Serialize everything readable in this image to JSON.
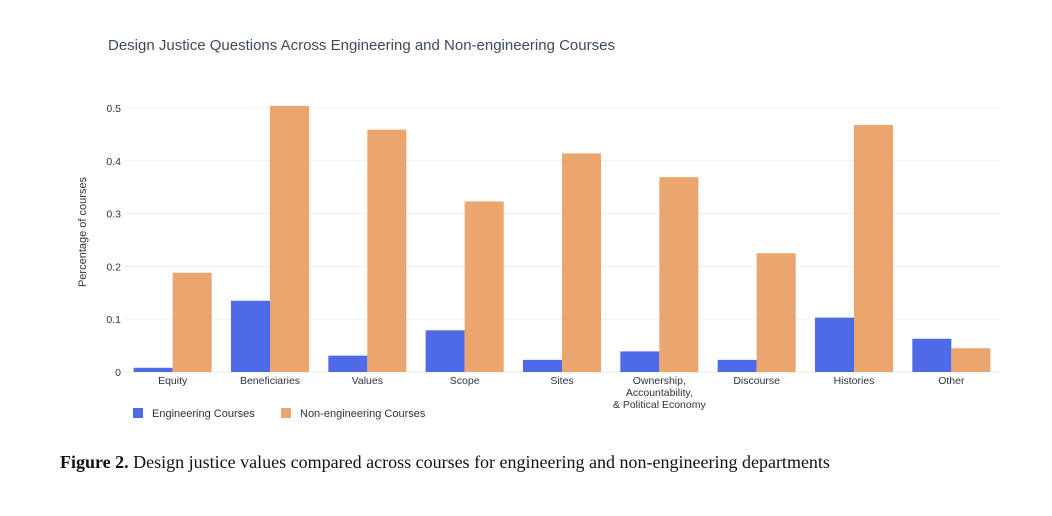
{
  "chart_data": {
    "type": "bar",
    "title": "Design Justice Questions Across Engineering and Non-engineering Courses",
    "xlabel": "",
    "ylabel": "Percentage of courses",
    "ylim": [
      0,
      0.5
    ],
    "yticks": [
      "0",
      "0.1",
      "0.2",
      "0.3",
      "0.4",
      "0.5"
    ],
    "categories": [
      [
        "Equity"
      ],
      [
        "Beneficiaries"
      ],
      [
        "Values"
      ],
      [
        "Scope"
      ],
      [
        "Sites"
      ],
      [
        "Ownership,",
        "Accountability,",
        "& Political Economy"
      ],
      [
        "Discourse"
      ],
      [
        "Histories"
      ],
      [
        "Other"
      ]
    ],
    "series": [
      {
        "name": "Engineering Courses",
        "color": "#4f6ae6",
        "values": [
          0.008,
          0.135,
          0.031,
          0.079,
          0.023,
          0.039,
          0.023,
          0.103,
          0.063
        ]
      },
      {
        "name": "Non-engineering Courses",
        "color": "#eaa66e",
        "values": [
          0.188,
          0.504,
          0.459,
          0.323,
          0.414,
          0.369,
          0.225,
          0.468,
          0.045
        ]
      }
    ],
    "grid": true,
    "legend_position": "bottom-left"
  },
  "caption": {
    "label": "Figure 2.",
    "text": " Design justice values compared across courses for engineering and non-engineering departments"
  }
}
